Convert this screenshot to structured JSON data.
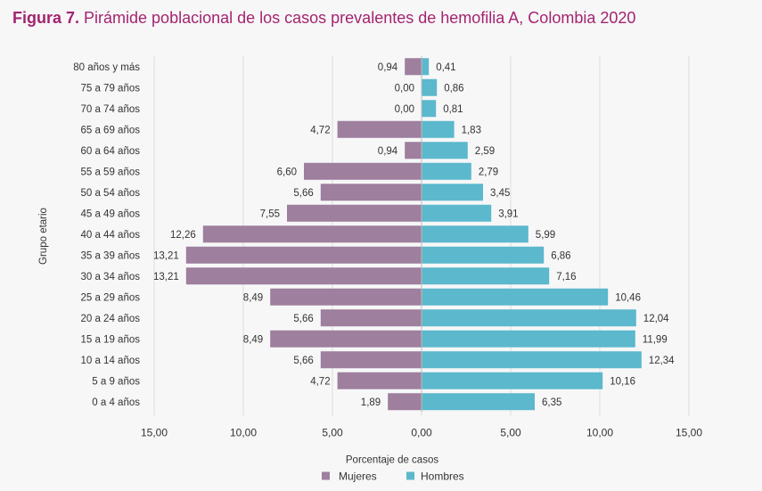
{
  "title": {
    "prefix": "Figura 7.",
    "text": " Pirámide poblacional de los casos prevalentes de hemofilia A, Colombia 2020"
  },
  "chart_data": {
    "type": "bar",
    "orientation": "horizontal",
    "categories": [
      "80 años y más",
      "75 a 79 años",
      "70 a 74 años",
      "65 a 69 años",
      "60 a 64 años",
      "55 a 59 años",
      "50 a 54 años",
      "45 a 49 años",
      "40 a 44 años",
      "35 a 39 años",
      "30 a 34 años",
      "25 a 29 años",
      "20 a 24 años",
      "15 a 19 años",
      "10 a 14 años",
      "5 a 9 años",
      "0 a 4 años"
    ],
    "series": [
      {
        "name": "Mujeres",
        "color": "#9e7f9e",
        "values": [
          0.94,
          0.0,
          0.0,
          4.72,
          0.94,
          6.6,
          5.66,
          7.55,
          12.26,
          13.21,
          13.21,
          8.49,
          5.66,
          8.49,
          5.66,
          4.72,
          1.89
        ],
        "labels": [
          "0,94",
          "0,00",
          "0,00",
          "4,72",
          "0,94",
          "6,60",
          "5,66",
          "7,55",
          "12,26",
          "13,21",
          "13,21",
          "8,49",
          "5,66",
          "8,49",
          "5,66",
          "4,72",
          "1,89"
        ]
      },
      {
        "name": "Hombres",
        "color": "#5cb8cc",
        "values": [
          0.41,
          0.86,
          0.81,
          1.83,
          2.59,
          2.79,
          3.45,
          3.91,
          5.99,
          6.86,
          7.16,
          10.46,
          12.04,
          11.99,
          12.34,
          10.16,
          6.35
        ],
        "labels": [
          "0,41",
          "0,86",
          "0,81",
          "1,83",
          "2,59",
          "2,79",
          "3,45",
          "3,91",
          "5,99",
          "6,86",
          "7,16",
          "10,46",
          "12,04",
          "11,99",
          "12,34",
          "10,16",
          "6,35"
        ]
      }
    ],
    "xlim": [
      -15,
      15
    ],
    "xticks": [
      "15,00",
      "10,00",
      "5,00",
      "0,00",
      "5,00",
      "10,00",
      "15,00"
    ],
    "xlabel": "Porcentaje  de casos",
    "ylabel": "Grupo etario",
    "grid": "vertical",
    "legend": "bottom"
  }
}
